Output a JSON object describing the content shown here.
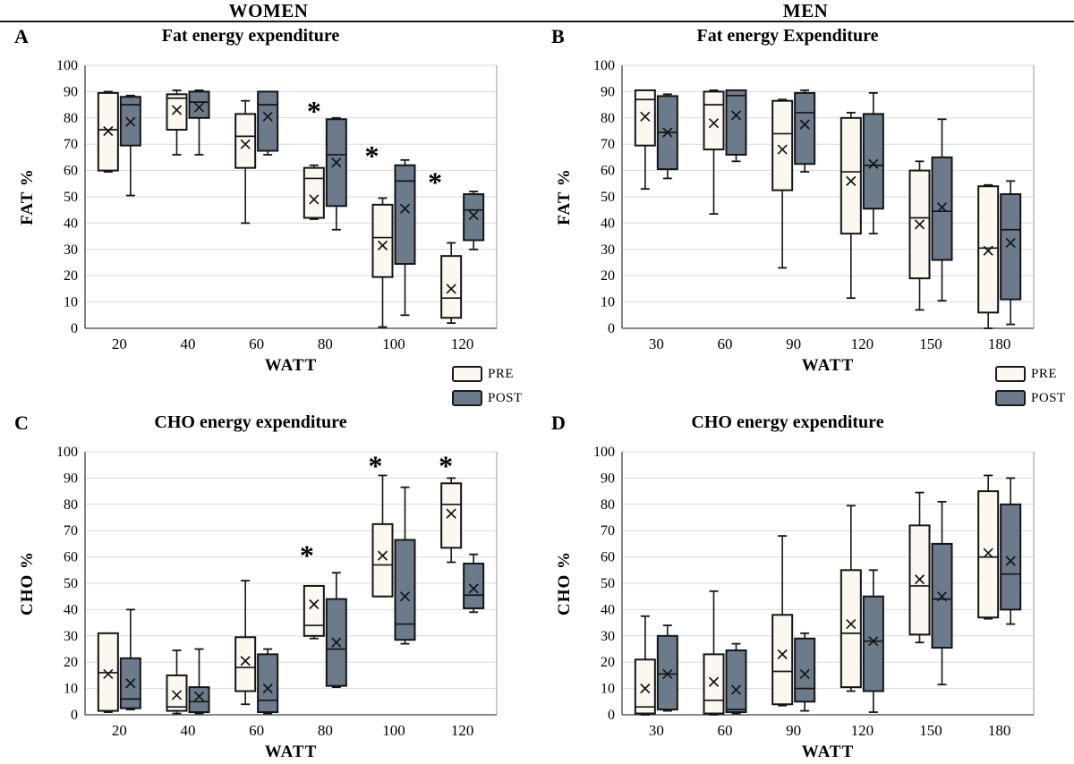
{
  "header": {
    "left": "WOMEN",
    "right": "MEN"
  },
  "legend": {
    "pre": "PRE",
    "post": "POST"
  },
  "colors": {
    "pre_fill": "#FCF8F0",
    "post_fill": "#6C7B8B",
    "box_border": "#141414",
    "gridline": "#D9D9D9",
    "axis": "#404040",
    "plot_right_border": "#9a9a9a",
    "text": "#000000"
  },
  "box_format": [
    "min",
    "q1",
    "median",
    "q3",
    "max",
    "mean"
  ],
  "chart_data": [
    {
      "letter": "A",
      "title": "Fat energy expenditure",
      "type": "boxplot",
      "xlabel": "WATT",
      "ylabel": "FAT %",
      "ylim": [
        0,
        100
      ],
      "ytick_step": 10,
      "grid": true,
      "categories": [
        "20",
        "40",
        "60",
        "80",
        "100",
        "120"
      ],
      "series": [
        {
          "name": "PRE",
          "boxes": [
            [
              59.5,
              60,
              75.5,
              89.5,
              90,
              75
            ],
            [
              66,
              75.5,
              87.5,
              89,
              90.5,
              83
            ],
            [
              40,
              61,
              73,
              81.5,
              86.5,
              70
            ],
            [
              41.5,
              42,
              57,
              61,
              62,
              49
            ],
            [
              0.5,
              19.5,
              34.5,
              47,
              49.5,
              31.5
            ],
            [
              2,
              4,
              11.5,
              27.5,
              32.5,
              15
            ]
          ]
        },
        {
          "name": "POST",
          "boxes": [
            [
              50.5,
              69.5,
              85,
              88,
              88.5,
              78.5
            ],
            [
              66,
              80,
              86,
              90,
              90.5,
              84
            ],
            [
              66,
              67.5,
              85,
              90,
              90,
              80.5
            ],
            [
              37.5,
              46.5,
              66,
              79.5,
              80,
              63
            ],
            [
              5,
              24.5,
              56,
              62,
              64,
              45.5
            ],
            [
              30,
              33.5,
              45,
              51,
              52,
              43
            ]
          ]
        }
      ],
      "annotations": [
        {
          "cat": 3,
          "value": 83,
          "dx": 0,
          "symbol": "*"
        },
        {
          "cat": 4,
          "value": 66,
          "dx": -12,
          "symbol": "*"
        },
        {
          "cat": 5,
          "value": 56,
          "dx": -18,
          "symbol": "*"
        }
      ]
    },
    {
      "letter": "B",
      "title": "Fat energy Expenditure",
      "type": "boxplot",
      "xlabel": "WATT",
      "ylabel": "FAT %",
      "ylim": [
        0,
        100
      ],
      "ytick_step": 10,
      "grid": true,
      "categories": [
        "30",
        "60",
        "90",
        "120",
        "150",
        "180"
      ],
      "series": [
        {
          "name": "PRE",
          "boxes": [
            [
              53,
              69.5,
              87,
              90.5,
              90.5,
              80.5
            ],
            [
              43.5,
              68,
              85,
              90,
              90.5,
              78
            ],
            [
              23,
              52.5,
              74,
              86.5,
              87,
              68
            ],
            [
              11.5,
              36,
              59.5,
              80,
              82,
              56
            ],
            [
              7,
              19,
              42,
              60,
              63.5,
              39.5
            ],
            [
              0,
              6,
              30.5,
              54,
              54.5,
              29.5
            ]
          ]
        },
        {
          "name": "POST",
          "boxes": [
            [
              57,
              60.5,
              74.5,
              88.3,
              89,
              74.5
            ],
            [
              63.5,
              66,
              88.5,
              90.5,
              90.5,
              81
            ],
            [
              59.5,
              62.5,
              82,
              89.5,
              90.5,
              77.5
            ],
            [
              36,
              45.5,
              62,
              81.5,
              89.5,
              62.5
            ],
            [
              10.5,
              26,
              44.5,
              65,
              79.5,
              46
            ],
            [
              1.5,
              11,
              37.5,
              51,
              56,
              32.5
            ]
          ]
        }
      ],
      "annotations": []
    },
    {
      "letter": "C",
      "title": "CHO energy expenditure",
      "type": "boxplot",
      "xlabel": "WATT",
      "ylabel": "CHO %",
      "ylim": [
        0,
        100
      ],
      "ytick_step": 10,
      "grid": true,
      "categories": [
        "20",
        "40",
        "60",
        "80",
        "100",
        "120"
      ],
      "series": [
        {
          "name": "PRE",
          "boxes": [
            [
              1,
              1.5,
              16,
              31,
              31,
              15.5
            ],
            [
              0.5,
              1.5,
              3,
              15,
              24.5,
              7.5
            ],
            [
              4,
              9,
              18,
              29.5,
              51,
              20.5
            ],
            [
              29,
              30,
              34,
              49,
              49,
              42
            ],
            [
              45,
              45,
              57,
              72.5,
              91,
              60.5
            ],
            [
              58,
              63.5,
              80,
              88,
              90,
              76.5
            ]
          ]
        },
        {
          "name": "POST",
          "boxes": [
            [
              2,
              2.5,
              6,
              21.5,
              40,
              12
            ],
            [
              0.5,
              1,
              5,
              10.5,
              25,
              7
            ],
            [
              0.5,
              1,
              5.5,
              23,
              25,
              10
            ],
            [
              10.5,
              11,
              25,
              44,
              54,
              27.5
            ],
            [
              27,
              28.5,
              34.5,
              66.5,
              86.5,
              45
            ],
            [
              39,
              40.5,
              45.5,
              57.5,
              61,
              48
            ]
          ]
        }
      ],
      "annotations": [
        {
          "cat": 3,
          "value": 61,
          "dx": -8,
          "symbol": "*"
        },
        {
          "cat": 4,
          "value": 95,
          "dx": -8,
          "symbol": "*"
        },
        {
          "cat": 5,
          "value": 95,
          "dx": -6,
          "symbol": "*"
        }
      ]
    },
    {
      "letter": "D",
      "title": "CHO energy expenditure",
      "type": "boxplot",
      "xlabel": "WATT",
      "ylabel": "CHO %",
      "ylim": [
        0,
        100
      ],
      "ytick_step": 10,
      "grid": true,
      "categories": [
        "30",
        "60",
        "90",
        "120",
        "150",
        "180"
      ],
      "series": [
        {
          "name": "PRE",
          "boxes": [
            [
              0,
              0.5,
              3,
              21,
              37.5,
              10
            ],
            [
              0,
              0.5,
              5.5,
              23,
              47,
              12.5
            ],
            [
              3.5,
              4,
              16.5,
              38,
              68,
              23
            ],
            [
              9,
              10.5,
              31,
              55,
              79.5,
              34.5
            ],
            [
              27.5,
              30.5,
              49,
              72,
              84.5,
              51.5
            ],
            [
              36.5,
              37,
              60,
              85,
              91,
              61.5
            ]
          ]
        },
        {
          "name": "POST",
          "boxes": [
            [
              1.5,
              2,
              15.5,
              30,
              34,
              15.5
            ],
            [
              0.5,
              1,
              2,
              24.5,
              27,
              9.5
            ],
            [
              1.5,
              5,
              10,
              29,
              31,
              15.5
            ],
            [
              1,
              9,
              28,
              45,
              55,
              28
            ],
            [
              11.5,
              25.5,
              44,
              65,
              81,
              45
            ],
            [
              34.5,
              40,
              53.5,
              80,
              90,
              58.5
            ]
          ]
        }
      ],
      "annotations": []
    }
  ]
}
